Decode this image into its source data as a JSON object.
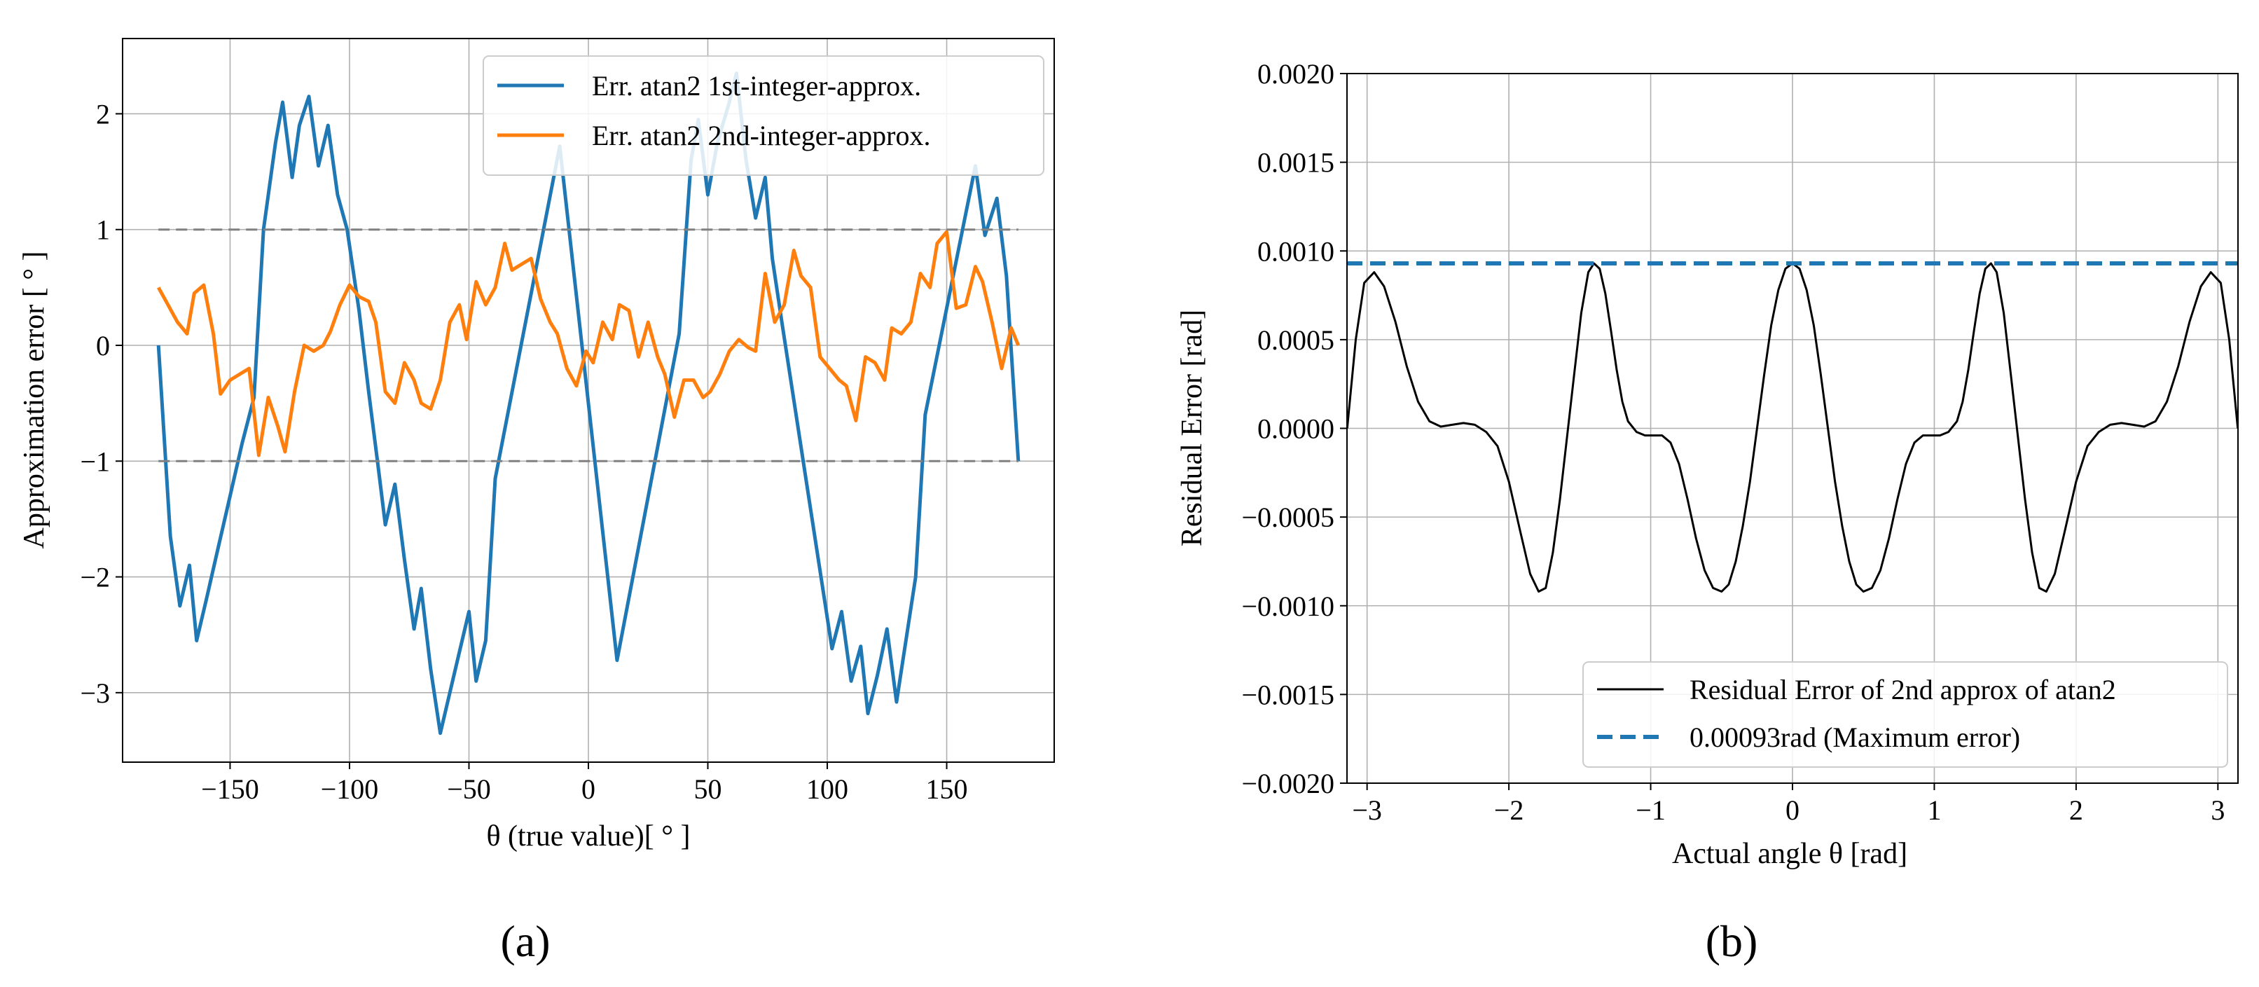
{
  "chart_data": [
    {
      "type": "line",
      "panel_label": "(a)",
      "xlabel": "θ (true value)[ ° ]",
      "ylabel": "Approximation error [ ° ]",
      "xlim": [
        -195,
        195
      ],
      "ylim": [
        -3.6,
        2.65
      ],
      "xticks": [
        -150,
        -100,
        -50,
        0,
        50,
        100,
        150
      ],
      "xtick_labels": [
        "−150",
        "−100",
        "−50",
        "0",
        "50",
        "100",
        "150"
      ],
      "yticks": [
        -3,
        -2,
        -1,
        0,
        1,
        2
      ],
      "ytick_labels": [
        "−3",
        "−2",
        "−1",
        "0",
        "1",
        "2"
      ],
      "grid": true,
      "legend_position": "upper-right",
      "series": [
        {
          "name": "Err. atan2 1st-integer-approx.",
          "color": "#1f77b4",
          "style": "solid",
          "x": [
            -180,
            -175,
            -171,
            -167,
            -164,
            -160,
            -155,
            -150,
            -145,
            -140,
            -136,
            -131,
            -128,
            -124,
            -121,
            -117,
            -113,
            -109,
            -105,
            -101,
            -96,
            -92,
            -88,
            -85,
            -81,
            -77,
            -73,
            -70,
            -66,
            -62,
            -58,
            -54,
            -50,
            -47,
            -43,
            -39,
            -12,
            12,
            38,
            43,
            46,
            50,
            54,
            59,
            62,
            66,
            70,
            74,
            77,
            81,
            102,
            106,
            110,
            114,
            117,
            121,
            125,
            129,
            137,
            141,
            162,
            166,
            171,
            175,
            180
          ],
          "y": [
            0.0,
            -1.65,
            -2.25,
            -1.9,
            -2.55,
            -2.2,
            -1.75,
            -1.3,
            -0.85,
            -0.45,
            1.0,
            1.75,
            2.1,
            1.45,
            1.9,
            2.15,
            1.55,
            1.9,
            1.3,
            1.0,
            0.3,
            -0.4,
            -1.05,
            -1.55,
            -1.2,
            -1.85,
            -2.45,
            -2.1,
            -2.8,
            -3.35,
            -3.0,
            -2.65,
            -2.3,
            -2.9,
            -2.55,
            -1.15,
            1.72,
            -2.72,
            0.1,
            1.6,
            1.95,
            1.3,
            1.75,
            2.1,
            2.35,
            1.6,
            1.1,
            1.45,
            0.75,
            0.2,
            -2.62,
            -2.3,
            -2.9,
            -2.6,
            -3.18,
            -2.85,
            -2.45,
            -3.08,
            -2.0,
            -0.6,
            1.55,
            0.95,
            1.27,
            0.6,
            -1.0
          ]
        },
        {
          "name": "Err. atan2 2nd-integer-approx.",
          "color": "#ff7f0e",
          "style": "solid",
          "x": [
            -180,
            -176,
            -172,
            -168,
            -165,
            -161,
            -157,
            -154,
            -150,
            -146,
            -142,
            -138,
            -134,
            -130,
            -127,
            -123,
            -119,
            -115,
            -111,
            -108,
            -104,
            -100,
            -96,
            -92,
            -89,
            -85,
            -81,
            -77,
            -73,
            -70,
            -66,
            -62,
            -58,
            -54,
            -51,
            -47,
            -43,
            -39,
            -35,
            -32,
            -28,
            -24,
            -20,
            -16,
            -13,
            -9,
            -5,
            -1,
            2,
            6,
            10,
            13,
            17,
            21,
            25,
            29,
            32,
            36,
            40,
            44,
            48,
            51,
            55,
            59,
            63,
            67,
            70,
            74,
            78,
            82,
            86,
            89,
            93,
            97,
            101,
            105,
            108,
            112,
            116,
            120,
            124,
            127,
            131,
            135,
            139,
            143,
            146,
            150,
            154,
            158,
            162,
            165,
            169,
            173,
            177,
            180
          ],
          "y": [
            0.5,
            0.35,
            0.2,
            0.1,
            0.45,
            0.52,
            0.1,
            -0.42,
            -0.3,
            -0.25,
            -0.2,
            -0.95,
            -0.45,
            -0.7,
            -0.92,
            -0.4,
            0.0,
            -0.05,
            0.0,
            0.12,
            0.35,
            0.52,
            0.42,
            0.38,
            0.2,
            -0.4,
            -0.5,
            -0.15,
            -0.3,
            -0.5,
            -0.55,
            -0.3,
            0.2,
            0.35,
            0.05,
            0.55,
            0.35,
            0.5,
            0.88,
            0.65,
            0.7,
            0.75,
            0.4,
            0.2,
            0.1,
            -0.2,
            -0.35,
            -0.05,
            -0.15,
            0.2,
            0.05,
            0.35,
            0.3,
            -0.1,
            0.2,
            -0.1,
            -0.25,
            -0.62,
            -0.3,
            -0.3,
            -0.45,
            -0.4,
            -0.25,
            -0.05,
            0.05,
            -0.02,
            -0.05,
            0.62,
            0.2,
            0.35,
            0.82,
            0.6,
            0.5,
            -0.1,
            -0.2,
            -0.3,
            -0.35,
            -0.65,
            -0.1,
            -0.15,
            -0.3,
            0.15,
            0.1,
            0.2,
            0.62,
            0.5,
            0.88,
            0.98,
            0.32,
            0.35,
            0.68,
            0.55,
            0.2,
            -0.2,
            0.15,
            0.0
          ]
        },
        {
          "name": "",
          "color": "#808080",
          "style": "dashed",
          "x": [
            -180,
            180
          ],
          "y": [
            1.0,
            1.0
          ]
        },
        {
          "name": "",
          "color": "#808080",
          "style": "dashed",
          "x": [
            -180,
            180
          ],
          "y": [
            -1.0,
            -1.0
          ]
        }
      ]
    },
    {
      "type": "line",
      "panel_label": "(b)",
      "xlabel": "Actual angle θ [rad]",
      "ylabel": "Residual Error [rad]",
      "xlim": [
        -3.14159,
        3.14159
      ],
      "ylim": [
        -0.002,
        0.002
      ],
      "xticks": [
        -3,
        -2,
        -1,
        0,
        1,
        2,
        3
      ],
      "xtick_labels": [
        "−3",
        "−2",
        "−1",
        "0",
        "1",
        "2",
        "3"
      ],
      "yticks": [
        -0.002,
        -0.0015,
        -0.001,
        -0.0005,
        0.0,
        0.0005,
        0.001,
        0.0015,
        0.002
      ],
      "ytick_labels": [
        "−0.0020",
        "−0.0015",
        "−0.0010",
        "−0.0005",
        "0.0000",
        "0.0005",
        "0.0010",
        "0.0015",
        "0.0020"
      ],
      "grid": true,
      "legend_position": "lower-right",
      "series": [
        {
          "name": "Residual Error of 2nd approx of atan2",
          "color": "#000000",
          "style": "solid",
          "x": [
            -3.14,
            -3.08,
            -3.02,
            -2.95,
            -2.88,
            -2.8,
            -2.72,
            -2.64,
            -2.56,
            -2.48,
            -2.4,
            -2.32,
            -2.24,
            -2.16,
            -2.08,
            -2.0,
            -1.92,
            -1.85,
            -1.79,
            -1.74,
            -1.69,
            -1.64,
            -1.59,
            -1.54,
            -1.49,
            -1.44,
            -1.4,
            -1.36,
            -1.32,
            -1.28,
            -1.24,
            -1.2,
            -1.16,
            -1.1,
            -1.04,
            -0.98,
            -0.92,
            -0.86,
            -0.8,
            -0.74,
            -0.68,
            -0.62,
            -0.56,
            -0.5,
            -0.45,
            -0.4,
            -0.35,
            -0.3,
            -0.25,
            -0.2,
            -0.15,
            -0.1,
            -0.05,
            0.0,
            0.05,
            0.1,
            0.15,
            0.2,
            0.25,
            0.3,
            0.35,
            0.4,
            0.45,
            0.5,
            0.56,
            0.62,
            0.68,
            0.74,
            0.8,
            0.86,
            0.92,
            0.98,
            1.04,
            1.1,
            1.16,
            1.2,
            1.24,
            1.28,
            1.32,
            1.36,
            1.4,
            1.44,
            1.49,
            1.54,
            1.59,
            1.64,
            1.69,
            1.74,
            1.79,
            1.85,
            1.92,
            2.0,
            2.08,
            2.16,
            2.24,
            2.32,
            2.4,
            2.48,
            2.56,
            2.64,
            2.72,
            2.8,
            2.88,
            2.95,
            3.02,
            3.08,
            3.14
          ],
          "y": [
            0.0,
            0.0005,
            0.00082,
            0.00088,
            0.0008,
            0.0006,
            0.00035,
            0.00015,
            4e-05,
            1e-05,
            2e-05,
            3e-05,
            2e-05,
            -2e-05,
            -0.0001,
            -0.0003,
            -0.00058,
            -0.00082,
            -0.00092,
            -0.0009,
            -0.0007,
            -0.0004,
            -5e-05,
            0.0003,
            0.00065,
            0.00088,
            0.00093,
            0.0009,
            0.00076,
            0.00055,
            0.00033,
            0.00015,
            4e-05,
            -2e-05,
            -4e-05,
            -4e-05,
            -4e-05,
            -8e-05,
            -0.0002,
            -0.0004,
            -0.00062,
            -0.0008,
            -0.0009,
            -0.00092,
            -0.00088,
            -0.00075,
            -0.00055,
            -0.0003,
            0.0,
            0.0003,
            0.00058,
            0.00078,
            0.0009,
            0.00093,
            0.0009,
            0.00078,
            0.00058,
            0.0003,
            0.0,
            -0.0003,
            -0.00055,
            -0.00075,
            -0.00088,
            -0.00092,
            -0.0009,
            -0.0008,
            -0.00062,
            -0.0004,
            -0.0002,
            -8e-05,
            -4e-05,
            -4e-05,
            -4e-05,
            -2e-05,
            4e-05,
            0.00015,
            0.00033,
            0.00055,
            0.00076,
            0.0009,
            0.00093,
            0.00088,
            0.00065,
            0.0003,
            -5e-05,
            -0.0004,
            -0.0007,
            -0.0009,
            -0.00092,
            -0.00082,
            -0.00058,
            -0.0003,
            -0.0001,
            -2e-05,
            2e-05,
            3e-05,
            2e-05,
            1e-05,
            4e-05,
            0.00015,
            0.00035,
            0.0006,
            0.0008,
            0.00088,
            0.00082,
            0.0005,
            0.0
          ]
        },
        {
          "name": "0.00093rad (Maximum error)",
          "color": "#1f77b4",
          "style": "dashed",
          "x": [
            -3.14159,
            3.14159
          ],
          "y": [
            0.00093,
            0.00093
          ]
        }
      ]
    }
  ]
}
